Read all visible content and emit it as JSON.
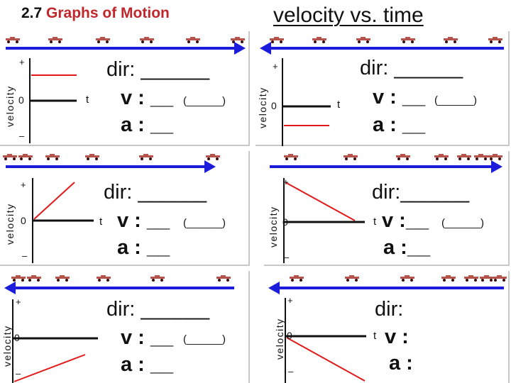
{
  "header": {
    "section_number": "2.7",
    "section_title": "Graphs of Motion",
    "slide_title": "velocity vs. time"
  },
  "graph_labels": {
    "y_axis": "velocity",
    "plus": "+",
    "zero": "0",
    "minus": "–",
    "t": "t"
  },
  "question_labels": {
    "dir": "dir:",
    "v": "v :",
    "a": "a :",
    "dir_blank": "______",
    "v_blank": "__",
    "a_blank": "__",
    "paren_blank": "(______)"
  },
  "panels": [
    {
      "id": "p1",
      "arrow_direction": "right",
      "line": "constant-positive"
    },
    {
      "id": "p2",
      "arrow_direction": "left",
      "line": "constant-negative"
    },
    {
      "id": "p3",
      "arrow_direction": "right",
      "line": "positive-increasing"
    },
    {
      "id": "p4",
      "arrow_direction": "left",
      "line": "positive-decreasing"
    },
    {
      "id": "p5",
      "arrow_direction": "left",
      "line": "negative-increasing"
    },
    {
      "id": "p6",
      "arrow_direction": "left",
      "line": "negative-decreasing"
    }
  ],
  "colors": {
    "arrow": "#1b1ddb",
    "graph_line": "#e01a1a",
    "car_body": "#b5524a",
    "car_wheel": "#3a0b0b",
    "title_accent": "#c0272d"
  },
  "icons": {
    "car": "toy-car-icon",
    "arrow": "direction-arrow-icon"
  }
}
